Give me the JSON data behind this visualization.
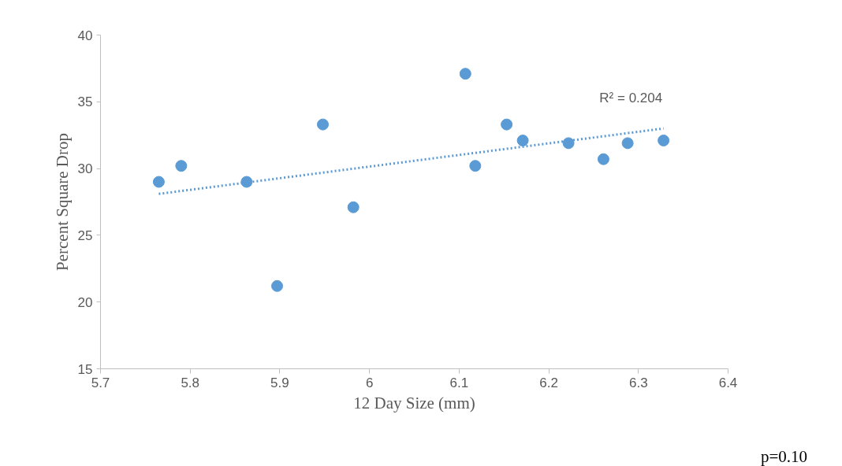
{
  "chart_data": {
    "type": "scatter",
    "xlabel": "12 Day Size (mm)",
    "ylabel": "Percent Square Drop",
    "xlim": [
      5.7,
      6.4
    ],
    "xticks": [
      5.7,
      5.8,
      5.9,
      6,
      6.1,
      6.2,
      6.3,
      6.4
    ],
    "ylim": [
      15,
      40
    ],
    "yticks": [
      15,
      20,
      25,
      30,
      35,
      40
    ],
    "grid": false,
    "series": [
      {
        "color": "#5b9bd5",
        "marker": "circle",
        "x": [
          5.765,
          5.79,
          5.863,
          5.897,
          5.948,
          5.982,
          6.107,
          6.118,
          6.153,
          6.171,
          6.222,
          6.261,
          6.288,
          6.328
        ],
        "values": [
          29.0,
          30.2,
          29.0,
          21.2,
          33.3,
          27.1,
          37.1,
          30.2,
          33.3,
          32.1,
          31.9,
          30.7,
          31.9,
          32.1
        ]
      },
      {
        "type": "line",
        "color": "#5b9bd5",
        "line_style": "dotted",
        "x": [
          5.765,
          6.328
        ],
        "values": [
          28.1,
          33.0
        ]
      }
    ],
    "annotations": [
      "R² = 0.204",
      "p=0.10"
    ]
  }
}
